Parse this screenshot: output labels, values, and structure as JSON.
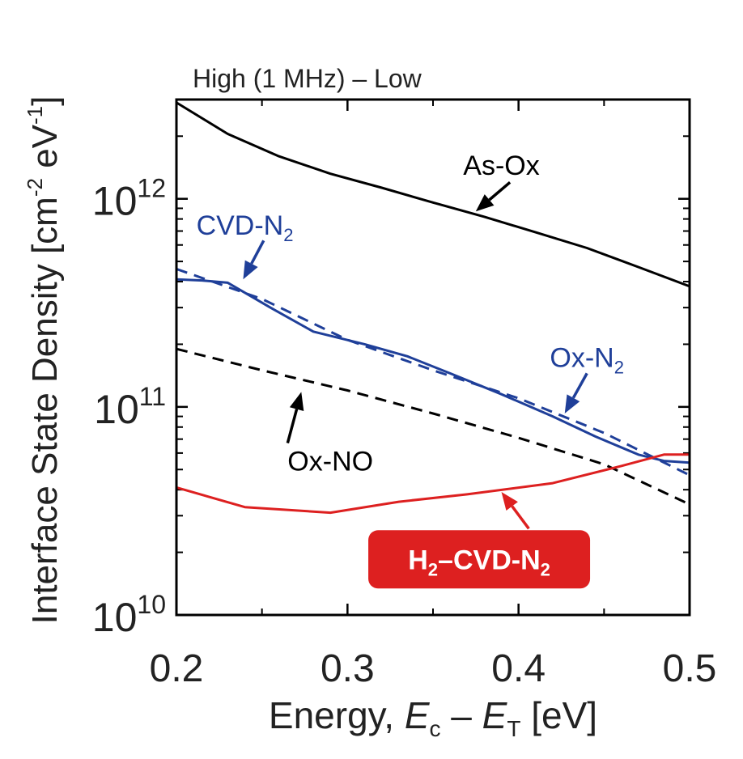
{
  "chart_data": {
    "type": "line",
    "title": "High (1 MHz) – Low",
    "xlabel": {
      "prefix": "Energy, ",
      "e1": "E",
      "s1": "c",
      "minus": " – ",
      "e2": "E",
      "s2": "T",
      "suffix": " [eV]"
    },
    "ylabel": {
      "main": "Interface State Density [cm",
      "sup1": "-2",
      "mid": " eV",
      "sup2": "-1",
      "end": "]"
    },
    "xlim": [
      0.2,
      0.5
    ],
    "ylim": [
      10000000000.0,
      3000000000000.0
    ],
    "yscale": "log",
    "x_ticks": [
      0.2,
      0.3,
      0.4,
      0.5
    ],
    "x_tick_labels": [
      "0.2",
      "0.3",
      "0.4",
      "0.5"
    ],
    "y_ticks": [
      {
        "base": "10",
        "exp": "10",
        "value": 10000000000.0
      },
      {
        "base": "10",
        "exp": "11",
        "value": 100000000000.0
      },
      {
        "base": "10",
        "exp": "12",
        "value": 1000000000000.0
      }
    ],
    "series": [
      {
        "color": "#000000",
        "style": "solid",
        "x": [
          0.2,
          0.23,
          0.26,
          0.29,
          0.32,
          0.35,
          0.38,
          0.41,
          0.44,
          0.47,
          0.5
        ],
        "y": [
          2900000000000.0,
          2050000000000.0,
          1600000000000.0,
          1320000000000.0,
          1130000000000.0,
          960000000000.0,
          820000000000.0,
          690000000000.0,
          580000000000.0,
          470000000000.0,
          380000000000.0
        ]
      },
      {
        "color": "#1f3f99",
        "style": "solid",
        "x": [
          0.2,
          0.215,
          0.23,
          0.255,
          0.28,
          0.31,
          0.335,
          0.36,
          0.39,
          0.42,
          0.445,
          0.47,
          0.485,
          0.5
        ],
        "y": [
          410000000000.0,
          405000000000.0,
          395000000000.0,
          300000000000.0,
          230000000000.0,
          200000000000.0,
          175000000000.0,
          145000000000.0,
          115000000000.0,
          90000000000.0,
          72000000000.0,
          59000000000.0,
          55000000000.0,
          54000000000.0
        ]
      },
      {
        "color": "#1f3f99",
        "style": "dashed",
        "x": [
          0.2,
          0.25,
          0.3,
          0.35,
          0.4,
          0.45,
          0.5
        ],
        "y": [
          460000000000.0,
          330000000000.0,
          210000000000.0,
          150000000000.0,
          110000000000.0,
          75000000000.0,
          47000000000.0
        ]
      },
      {
        "color": "#000000",
        "style": "dashed",
        "x": [
          0.2,
          0.25,
          0.3,
          0.35,
          0.4,
          0.45,
          0.5
        ],
        "y": [
          190000000000.0,
          150000000000.0,
          120000000000.0,
          93000000000.0,
          71000000000.0,
          53000000000.0,
          34000000000.0
        ]
      },
      {
        "color": "#dd2020",
        "style": "solid",
        "x": [
          0.2,
          0.24,
          0.29,
          0.33,
          0.37,
          0.42,
          0.46,
          0.485,
          0.5
        ],
        "y": [
          41000000000.0,
          33000000000.0,
          31000000000.0,
          35000000000.0,
          38000000000.0,
          43000000000.0,
          52000000000.0,
          59000000000.0,
          59000000000.0
        ]
      }
    ],
    "annotations": [
      {
        "text": "As-Ox",
        "sub": "",
        "color": "#000000",
        "x": 0.39,
        "y": 1450000000000.0,
        "arrow_from": [
          0.395,
          1200000000000.0
        ],
        "arrow_to": [
          0.375,
          870000000000.0
        ]
      },
      {
        "text": "CVD-N",
        "sub": "2",
        "color": "#1f3f99",
        "x": 0.24,
        "y": 750000000000.0,
        "arrow_from": [
          0.251,
          630000000000.0
        ],
        "arrow_to": [
          0.239,
          410000000000.0
        ]
      },
      {
        "text": "Ox-N",
        "sub": "2",
        "color": "#1f3f99",
        "x": 0.44,
        "y": 173000000000.0,
        "arrow_from": [
          0.44,
          145000000000.0
        ],
        "arrow_to": [
          0.427,
          93000000000.0
        ]
      },
      {
        "text": "Ox-NO",
        "sub": "",
        "color": "#000000",
        "x": 0.29,
        "y": 55000000000.0,
        "arrow_from": [
          0.265,
          67000000000.0
        ],
        "arrow_to": [
          0.273,
          118000000000.0
        ]
      },
      {
        "text": "H",
        "sub": "2",
        "rest": "–CVD-N",
        "sub2": "2",
        "color": "#dd2020",
        "boxed": true,
        "x": 0.377,
        "y": 18500000000.0,
        "arrow_from": [
          0.406,
          26000000000.0
        ],
        "arrow_to": [
          0.39,
          39000000000.0
        ]
      }
    ]
  }
}
